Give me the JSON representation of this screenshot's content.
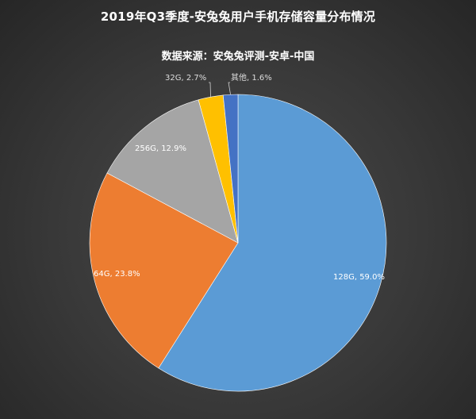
{
  "chart_data": {
    "type": "pie",
    "title": "2019年Q3季度-安兔兔用户手机存储容量分布情况",
    "subtitle": "数据来源：安兔兔评测-安卓-中国",
    "slices": [
      {
        "label": "128G",
        "value": 59.0,
        "display": "128G, 59.0%",
        "color": "#5b9bd5"
      },
      {
        "label": "64G",
        "value": 23.8,
        "display": "64G, 23.8%",
        "color": "#ed7d31"
      },
      {
        "label": "256G",
        "value": 12.9,
        "display": "256G, 12.9%",
        "color": "#a5a5a5"
      },
      {
        "label": "32G",
        "value": 2.7,
        "display": "32G, 2.7%",
        "color": "#ffc000"
      },
      {
        "label": "其他",
        "value": 1.6,
        "display": "其他, 1.6%",
        "color": "#4472c4"
      }
    ]
  }
}
